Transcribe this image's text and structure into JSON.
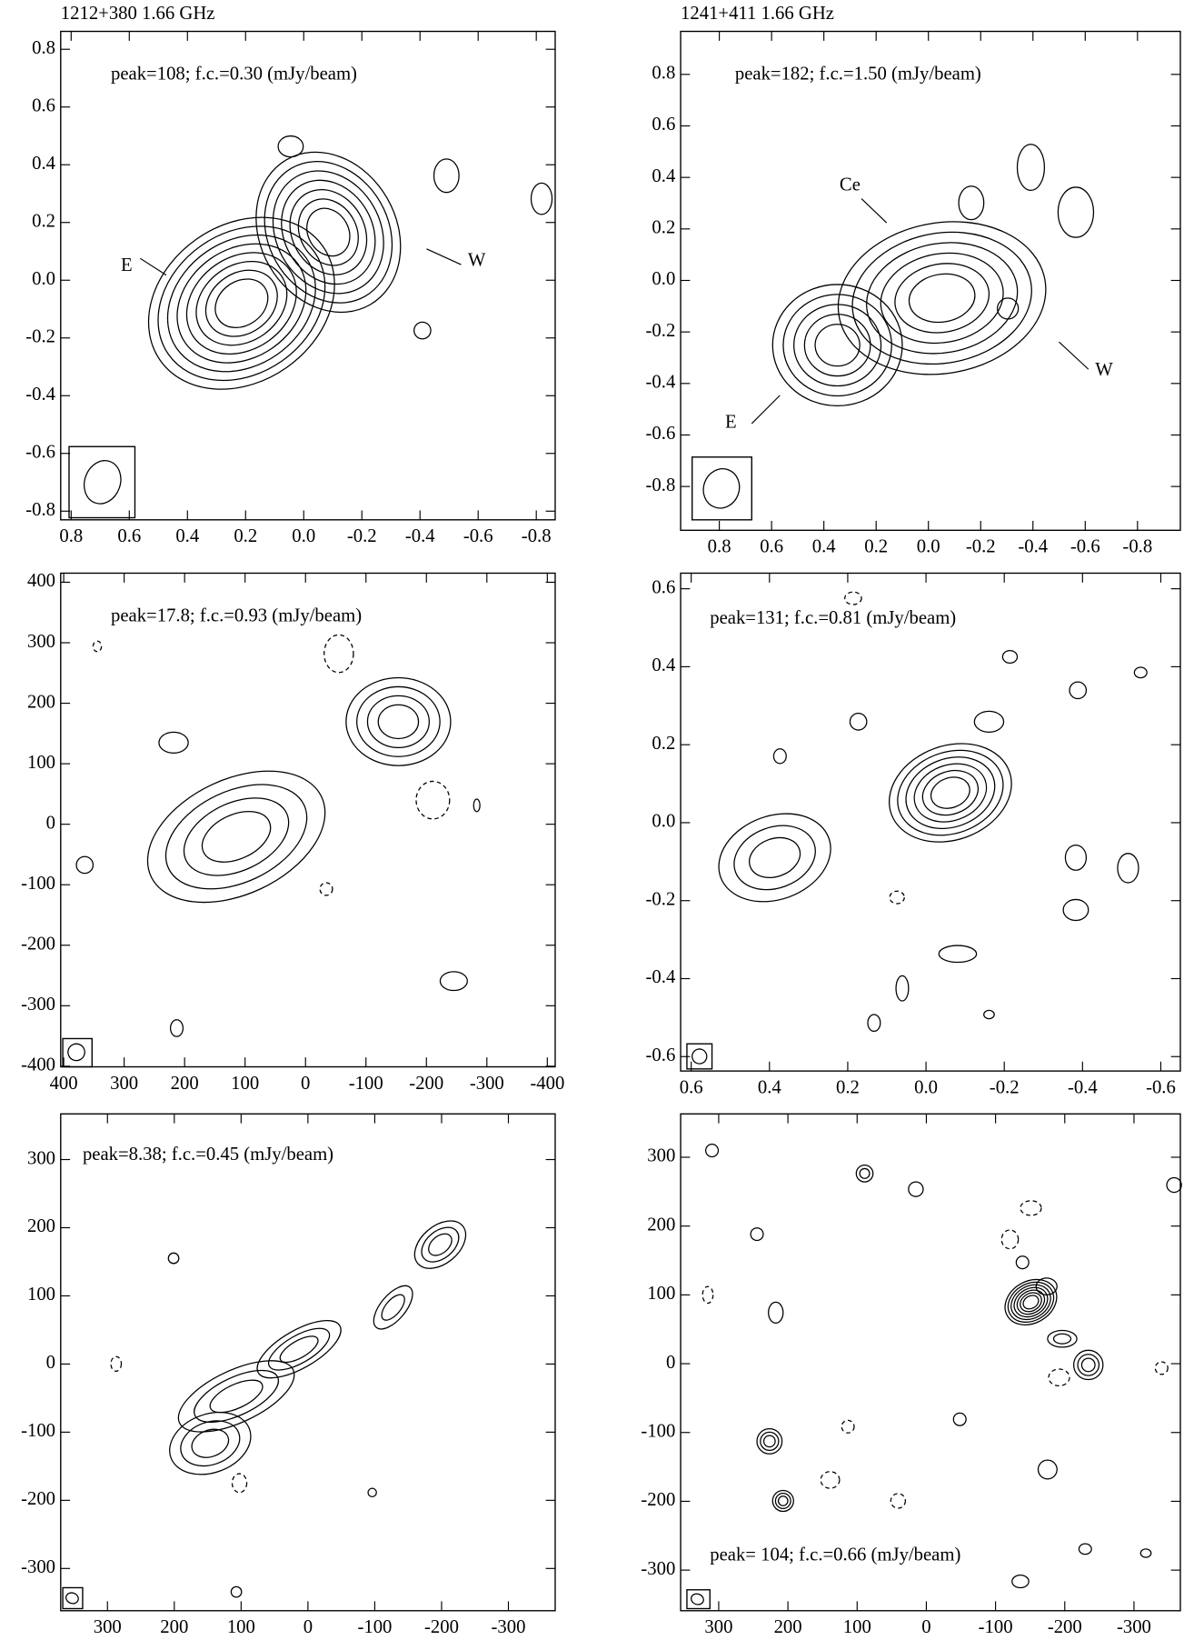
{
  "chart_data": [
    {
      "type": "contour",
      "title": "1212+380 1.66 GHz",
      "annotation": "peak=108; f.c.=0.30 (mJy/beam)",
      "labels": [
        "E",
        "W"
      ],
      "xlim": [
        0.836,
        -0.865
      ],
      "ylim": [
        -0.83,
        0.862
      ],
      "xticks": [
        0.8,
        0.6,
        0.4,
        0.2,
        {
          "value": 0,
          "label": "0.0"
        },
        -0.2,
        -0.4,
        -0.6,
        -0.8
      ],
      "yticks": [
        0.8,
        0.6,
        0.4,
        0.2,
        {
          "value": 0,
          "label": "0.0"
        },
        -0.2,
        -0.4,
        -0.6,
        -0.8
      ]
    },
    {
      "type": "contour",
      "title": "1241+411 1.66 GHz",
      "annotation": "peak=182; f.c.=1.50 (mJy/beam)",
      "labels": [
        "Ce",
        "W",
        "E"
      ],
      "xlim": [
        0.948,
        -0.964
      ],
      "ylim": [
        -0.97,
        0.967
      ],
      "xticks": [
        0.8,
        0.6,
        0.4,
        0.2,
        {
          "value": 0,
          "label": "0.0"
        },
        -0.2,
        -0.4,
        -0.6,
        -0.8
      ],
      "yticks": [
        0.8,
        0.6,
        0.4,
        0.2,
        {
          "value": 0,
          "label": "0.0"
        },
        -0.2,
        -0.4,
        -0.6,
        -0.8
      ]
    },
    {
      "type": "contour",
      "annotation": "peak=17.8; f.c.=0.93 (mJy/beam)",
      "xlim": [
        405,
        -413
      ],
      "ylim": [
        -401,
        415
      ],
      "xticks": [
        400,
        300,
        200,
        100,
        0,
        -100,
        -200,
        -300,
        -400
      ],
      "yticks": [
        400,
        300,
        200,
        100,
        0,
        -100,
        -200,
        -300,
        -400
      ]
    },
    {
      "type": "contour",
      "annotation": "peak=131; f.c.=0.81 (mJy/beam)",
      "xlim": [
        0.627,
        -0.65
      ],
      "ylim": [
        -0.637,
        0.64
      ],
      "xticks": [
        0.6,
        0.4,
        0.2,
        {
          "value": 0,
          "label": "0.0"
        },
        -0.2,
        -0.4,
        -0.6
      ],
      "yticks": [
        0.6,
        0.4,
        0.2,
        {
          "value": 0,
          "label": "0.0"
        },
        -0.2,
        -0.4,
        -0.6
      ]
    },
    {
      "type": "contour",
      "annotation": "peak=8.38; f.c.=0.45 (mJy/beam)",
      "xlim": [
        370,
        -370
      ],
      "ylim": [
        -362,
        367
      ],
      "xticks": [
        300,
        200,
        100,
        0,
        -100,
        -200,
        -300
      ],
      "yticks": [
        300,
        200,
        100,
        0,
        -100,
        -200,
        -300
      ]
    },
    {
      "type": "contour",
      "annotation": "peak= 104; f.c.=0.66 (mJy/beam)",
      "xlim": [
        355,
        -367
      ],
      "ylim": [
        -359,
        363
      ],
      "xticks": [
        300,
        200,
        100,
        0,
        -100,
        -200,
        -300
      ],
      "yticks": [
        300,
        200,
        100,
        0,
        -100,
        -200,
        -300
      ]
    }
  ]
}
